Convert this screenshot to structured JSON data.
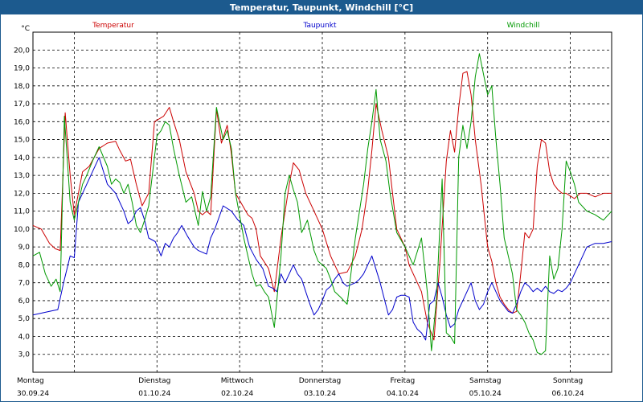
{
  "title": "Temperatur, Taupunkt, Windchill [°C]",
  "chart_data": {
    "type": "line",
    "title": "Temperatur, Taupunkt, Windchill [°C]",
    "ylabel": "°C",
    "ylim": [
      2.0,
      21.0
    ],
    "yticks": [
      3.0,
      4.0,
      5.0,
      6.0,
      7.0,
      8.0,
      9.0,
      10.0,
      11.0,
      12.0,
      13.0,
      14.0,
      15.0,
      16.0,
      17.0,
      18.0,
      19.0,
      20.0
    ],
    "ytick_labels": [
      "3,0",
      "4,0",
      "5,0",
      "6,0",
      "7,0",
      "8,0",
      "9,0",
      "10,0",
      "11,0",
      "12,0",
      "13,0",
      "14,0",
      "15,0",
      "16,0",
      "17,0",
      "18,0",
      "19,0",
      "20,0"
    ],
    "xlim": [
      0,
      7
    ],
    "x_unit": "days since 30.09.24 00:00",
    "grid": true,
    "days": [
      {
        "weekday": "Montag",
        "date": "30.09.24"
      },
      {
        "weekday": "Dienstag",
        "date": "01.10.24"
      },
      {
        "weekday": "Mittwoch",
        "date": "02.10.24"
      },
      {
        "weekday": "Donnerstag",
        "date": "03.10.24"
      },
      {
        "weekday": "Freitag",
        "date": "04.10.24"
      },
      {
        "weekday": "Samstag",
        "date": "05.10.24"
      },
      {
        "weekday": "Sonntag",
        "date": "06.10.24"
      }
    ],
    "series": [
      {
        "name": "Temperatur",
        "color": "#cc0000",
        "x": [
          0.0,
          0.1,
          0.2,
          0.27,
          0.33,
          0.39,
          0.45,
          0.5,
          0.6,
          0.68,
          0.8,
          0.9,
          1.0,
          1.05,
          1.12,
          1.18,
          1.25,
          1.32,
          1.4,
          1.47,
          1.58,
          1.65,
          1.7,
          1.77,
          1.85,
          1.95,
          2.0,
          2.05,
          2.1,
          2.15,
          2.22,
          2.28,
          2.35,
          2.4,
          2.45,
          2.55,
          2.6,
          2.65,
          2.7,
          2.75,
          2.85,
          2.92,
          3.0,
          3.1,
          3.15,
          3.22,
          3.25,
          3.3,
          3.38,
          3.45,
          3.5,
          3.6,
          3.7,
          3.8,
          3.9,
          3.98,
          4.05,
          4.1,
          4.15,
          4.22,
          4.3,
          4.35,
          4.4,
          4.5,
          4.55,
          4.6,
          4.7,
          4.77,
          4.85,
          4.92,
          5.0,
          5.05,
          5.1,
          5.15,
          5.2,
          5.25,
          5.3,
          5.35,
          5.42,
          5.5,
          5.55,
          5.6,
          5.65,
          5.7,
          5.75,
          5.8,
          5.85,
          5.9,
          5.95,
          6.0,
          6.05,
          6.1,
          6.15,
          6.2,
          6.25,
          6.3,
          6.35,
          6.4,
          6.45,
          6.55,
          6.62,
          6.7,
          6.8,
          6.9,
          7.0
        ],
        "y": [
          10.2,
          10.0,
          9.2,
          8.9,
          8.8,
          16.5,
          13.0,
          10.8,
          13.2,
          13.5,
          14.5,
          14.8,
          14.9,
          14.4,
          13.8,
          13.9,
          12.5,
          11.3,
          12.0,
          16.0,
          16.3,
          16.8,
          16.0,
          15.0,
          13.2,
          12.0,
          11.0,
          10.8,
          11.0,
          10.8,
          16.7,
          14.8,
          15.8,
          14.2,
          12.0,
          11.2,
          10.8,
          10.6,
          10.0,
          8.5,
          7.8,
          6.5,
          9.5,
          12.5,
          13.7,
          13.3,
          12.8,
          12.0,
          11.2,
          10.5,
          10.0,
          8.5,
          7.5,
          7.6,
          8.5,
          10.0,
          12.2,
          14.4,
          17.0,
          15.5,
          14.0,
          12.0,
          10.0,
          9.0,
          8.0,
          7.5,
          6.5,
          4.8,
          3.8,
          8.0,
          13.8,
          15.5,
          14.3,
          16.8,
          18.7,
          18.8,
          17.5,
          15.0,
          12.5,
          9.0,
          8.2,
          7.0,
          6.2,
          5.8,
          5.5,
          5.3,
          5.4,
          7.5,
          9.8,
          9.5,
          10.0,
          13.5,
          15.0,
          14.8,
          13.2,
          12.5,
          12.2,
          12.0,
          12.0,
          11.7,
          12.0,
          12.0,
          11.8,
          12.0,
          12.0
        ]
      },
      {
        "name": "Taupunkt",
        "color": "#0000cc",
        "x": [
          0.0,
          0.1,
          0.2,
          0.3,
          0.37,
          0.45,
          0.5,
          0.55,
          0.6,
          0.65,
          0.7,
          0.8,
          0.9,
          1.0,
          1.05,
          1.1,
          1.15,
          1.2,
          1.25,
          1.3,
          1.35,
          1.4,
          1.48,
          1.55,
          1.6,
          1.65,
          1.7,
          1.75,
          1.8,
          1.87,
          1.95,
          2.0,
          2.05,
          2.1,
          2.15,
          2.2,
          2.3,
          2.4,
          2.48,
          2.55,
          2.62,
          2.7,
          2.78,
          2.85,
          2.9,
          2.95,
          3.0,
          3.05,
          3.1,
          3.15,
          3.2,
          3.25,
          3.3,
          3.35,
          3.4,
          3.45,
          3.5,
          3.55,
          3.6,
          3.65,
          3.7,
          3.75,
          3.8,
          3.85,
          3.9,
          3.95,
          4.0,
          4.05,
          4.1,
          4.2,
          4.3,
          4.35,
          4.4,
          4.45,
          4.5,
          4.55,
          4.6,
          4.65,
          4.7,
          4.75,
          4.8,
          4.85,
          4.9,
          4.95,
          5.0,
          5.05,
          5.1,
          5.15,
          5.2,
          5.25,
          5.3,
          5.35,
          5.4,
          5.45,
          5.5,
          5.55,
          5.6,
          5.65,
          5.7,
          5.75,
          5.8,
          5.85,
          5.9,
          5.95,
          6.0,
          6.05,
          6.1,
          6.15,
          6.2,
          6.25,
          6.3,
          6.35,
          6.4,
          6.45,
          6.5,
          6.55,
          6.6,
          6.65,
          6.7,
          6.8,
          6.9,
          7.0
        ],
        "y": [
          5.2,
          5.3,
          5.4,
          5.5,
          7.0,
          8.5,
          8.4,
          11.5,
          12.0,
          12.5,
          13.0,
          14.0,
          12.5,
          12.0,
          11.5,
          11.0,
          10.3,
          10.5,
          11.0,
          11.2,
          10.5,
          9.5,
          9.3,
          8.5,
          9.2,
          9.0,
          9.5,
          9.8,
          10.2,
          9.6,
          9.0,
          8.8,
          8.7,
          8.6,
          9.5,
          10.0,
          11.3,
          11.0,
          10.5,
          10.2,
          9.0,
          8.3,
          7.8,
          6.8,
          6.7,
          6.5,
          7.5,
          7.0,
          7.5,
          8.0,
          7.5,
          7.2,
          6.5,
          5.8,
          5.2,
          5.5,
          6.0,
          6.6,
          6.8,
          7.2,
          7.5,
          7.0,
          6.8,
          6.9,
          7.0,
          7.2,
          7.5,
          8.0,
          8.5,
          7.0,
          5.2,
          5.5,
          6.2,
          6.3,
          6.3,
          6.2,
          4.8,
          4.4,
          4.2,
          3.8,
          5.8,
          6.0,
          7.0,
          6.2,
          5.2,
          4.5,
          4.7,
          5.5,
          6.0,
          6.5,
          7.0,
          6.0,
          5.5,
          5.8,
          6.5,
          7.0,
          6.5,
          6.0,
          5.7,
          5.4,
          5.3,
          5.8,
          6.5,
          7.0,
          6.8,
          6.5,
          6.7,
          6.5,
          6.8,
          6.5,
          6.4,
          6.6,
          6.5,
          6.7,
          7.0,
          7.5,
          8.0,
          8.5,
          9.0,
          9.2,
          9.2,
          9.3
        ]
      },
      {
        "name": "Windchill",
        "color": "#009900",
        "x": [
          0.0,
          0.08,
          0.15,
          0.22,
          0.28,
          0.33,
          0.38,
          0.45,
          0.5,
          0.55,
          0.6,
          0.65,
          0.72,
          0.8,
          0.9,
          0.95,
          1.0,
          1.05,
          1.1,
          1.15,
          1.2,
          1.25,
          1.3,
          1.35,
          1.4,
          1.5,
          1.55,
          1.6,
          1.65,
          1.7,
          1.77,
          1.85,
          1.92,
          2.0,
          2.05,
          2.1,
          2.15,
          2.22,
          2.3,
          2.35,
          2.4,
          2.45,
          2.55,
          2.6,
          2.65,
          2.7,
          2.75,
          2.8,
          2.85,
          2.92,
          3.0,
          3.05,
          3.1,
          3.15,
          3.2,
          3.25,
          3.32,
          3.4,
          3.45,
          3.55,
          3.6,
          3.65,
          3.72,
          3.8,
          3.9,
          4.0,
          4.05,
          4.1,
          4.15,
          4.2,
          4.27,
          4.32,
          4.4,
          4.5,
          4.6,
          4.7,
          4.77,
          4.82,
          4.88,
          4.95,
          5.0,
          5.05,
          5.1,
          5.15,
          5.2,
          5.25,
          5.3,
          5.35,
          5.4,
          5.5,
          5.55,
          5.6,
          5.65,
          5.7,
          5.75,
          5.8,
          5.85,
          5.9,
          5.95,
          6.0,
          6.05,
          6.1,
          6.15,
          6.2,
          6.25,
          6.3,
          6.35,
          6.4,
          6.45,
          6.5,
          6.55,
          6.6,
          6.7,
          6.8,
          6.9,
          7.0
        ],
        "y": [
          8.5,
          8.7,
          7.5,
          6.8,
          7.2,
          6.5,
          16.3,
          11.5,
          10.5,
          11.5,
          12.5,
          13.0,
          13.8,
          14.6,
          13.5,
          12.5,
          12.8,
          12.6,
          12.0,
          12.5,
          11.5,
          10.2,
          9.8,
          10.5,
          11.3,
          15.2,
          15.5,
          16.0,
          15.8,
          14.5,
          13.0,
          11.5,
          11.8,
          10.2,
          12.1,
          11.0,
          11.8,
          16.8,
          15.0,
          15.5,
          14.5,
          12.0,
          9.5,
          8.5,
          7.5,
          6.8,
          6.9,
          6.5,
          6.2,
          4.5,
          8.5,
          12.0,
          13.0,
          12.2,
          11.5,
          9.8,
          10.5,
          8.8,
          8.2,
          7.8,
          7.2,
          6.5,
          6.2,
          5.8,
          9.5,
          12.5,
          14.5,
          16.0,
          17.8,
          15.0,
          13.8,
          12.0,
          9.8,
          9.0,
          8.0,
          9.5,
          6.5,
          3.2,
          6.0,
          12.8,
          4.2,
          4.0,
          3.6,
          14.0,
          15.8,
          14.5,
          16.0,
          18.5,
          19.8,
          17.5,
          18.0,
          15.0,
          12.5,
          9.5,
          8.5,
          7.5,
          5.5,
          5.2,
          4.8,
          4.2,
          3.8,
          3.1,
          3.0,
          3.2,
          8.5,
          7.2,
          7.8,
          10.0,
          13.8,
          13.2,
          12.5,
          11.5,
          11.0,
          10.8,
          10.5,
          11.0
        ]
      }
    ]
  }
}
